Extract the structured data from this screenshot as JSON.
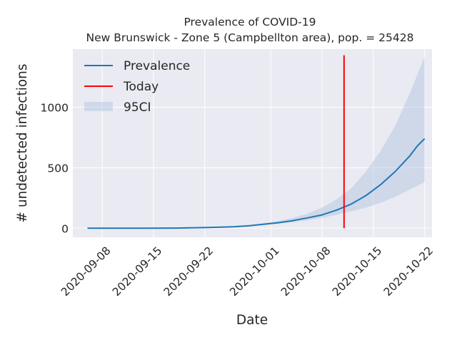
{
  "chart_data": {
    "type": "line",
    "title": "Prevalence of COVID-19",
    "subtitle": "New Brunswick - Zone 5 (Campbellton area), pop. = 25428",
    "xlabel": "Date",
    "ylabel": "# undetected infections",
    "x_ticks": [
      "2020-09-08",
      "2020-09-15",
      "2020-09-22",
      "2020-10-01",
      "2020-10-08",
      "2020-10-15",
      "2020-10-22"
    ],
    "y_ticks": [
      0,
      500,
      1000
    ],
    "xlim": [
      "2020-09-04",
      "2020-10-23"
    ],
    "ylim": [
      -75,
      1480
    ],
    "grid": true,
    "legend_position": "top-left",
    "legend": [
      "Prevalence",
      "Today",
      "95CI"
    ],
    "today": "2020-10-11",
    "series": [
      {
        "name": "Prevalence",
        "color": "#1f77b4",
        "points": [
          [
            "2020-09-06",
            0
          ],
          [
            "2020-09-10",
            0
          ],
          [
            "2020-09-14",
            0
          ],
          [
            "2020-09-18",
            1
          ],
          [
            "2020-09-20",
            3
          ],
          [
            "2020-09-22",
            5
          ],
          [
            "2020-09-24",
            8
          ],
          [
            "2020-09-26",
            12
          ],
          [
            "2020-09-28",
            20
          ],
          [
            "2020-09-30",
            32
          ],
          [
            "2020-10-02",
            45
          ],
          [
            "2020-10-04",
            62
          ],
          [
            "2020-10-06",
            85
          ],
          [
            "2020-10-08",
            110
          ],
          [
            "2020-10-10",
            150
          ],
          [
            "2020-10-12",
            200
          ],
          [
            "2020-10-14",
            270
          ],
          [
            "2020-10-16",
            360
          ],
          [
            "2020-10-18",
            470
          ],
          [
            "2020-10-20",
            600
          ],
          [
            "2020-10-21",
            680
          ],
          [
            "2020-10-22",
            740
          ]
        ]
      }
    ],
    "today_line": {
      "name": "Today",
      "color": "#ff0000",
      "y_range": [
        0,
        1430
      ]
    },
    "ci_band": {
      "name": "95CI",
      "color": "#b0c4de",
      "points": [
        [
          "2020-09-06",
          0,
          0
        ],
        [
          "2020-09-14",
          0,
          0
        ],
        [
          "2020-09-20",
          3,
          3
        ],
        [
          "2020-09-24",
          7,
          10
        ],
        [
          "2020-09-28",
          18,
          24
        ],
        [
          "2020-09-30",
          28,
          40
        ],
        [
          "2020-10-02",
          38,
          60
        ],
        [
          "2020-10-04",
          50,
          85
        ],
        [
          "2020-10-06",
          65,
          120
        ],
        [
          "2020-10-08",
          85,
          170
        ],
        [
          "2020-10-10",
          110,
          240
        ],
        [
          "2020-10-12",
          140,
          330
        ],
        [
          "2020-10-14",
          170,
          470
        ],
        [
          "2020-10-16",
          210,
          640
        ],
        [
          "2020-10-18",
          260,
          850
        ],
        [
          "2020-10-20",
          320,
          1120
        ],
        [
          "2020-10-22",
          380,
          1420
        ]
      ]
    }
  }
}
